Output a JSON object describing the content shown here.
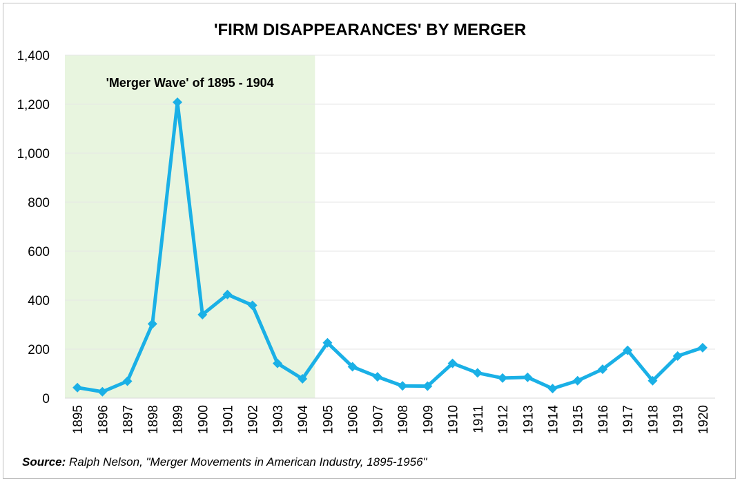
{
  "title": "'FIRM DISAPPEARANCES' BY MERGER",
  "source": {
    "label": "Source:",
    "text": " Ralph Nelson, \"Merger Movements in American Industry, 1895-1956\""
  },
  "chart_data": {
    "type": "line",
    "title": "'FIRM DISAPPEARANCES' BY MERGER",
    "xlabel": "",
    "ylabel": "",
    "categories": [
      "1895",
      "1896",
      "1897",
      "1898",
      "1899",
      "1900",
      "1901",
      "1902",
      "1903",
      "1904",
      "1905",
      "1906",
      "1907",
      "1908",
      "1909",
      "1910",
      "1911",
      "1912",
      "1913",
      "1914",
      "1915",
      "1916",
      "1917",
      "1918",
      "1919",
      "1920"
    ],
    "series": [
      {
        "values": [
          43,
          26,
          69,
          303,
          1208,
          341,
          423,
          379,
          142,
          79,
          226,
          128,
          87,
          50,
          49,
          142,
          103,
          82,
          85,
          39,
          71,
          118,
          195,
          71,
          172,
          206
        ],
        "color": "#1ab0e6"
      }
    ],
    "ylim": [
      0,
      1400
    ],
    "yticks": [
      0,
      200,
      400,
      600,
      800,
      1000,
      1200,
      1400
    ],
    "ytick_labels": [
      "0",
      "200",
      "400",
      "600",
      "800",
      "1,000",
      "1,200",
      "1,400"
    ],
    "grid": true,
    "shaded_region": {
      "from": "1895",
      "to": "1904",
      "label": "'Merger Wave' of 1895 - 1904",
      "color": "#e8f5df"
    }
  }
}
